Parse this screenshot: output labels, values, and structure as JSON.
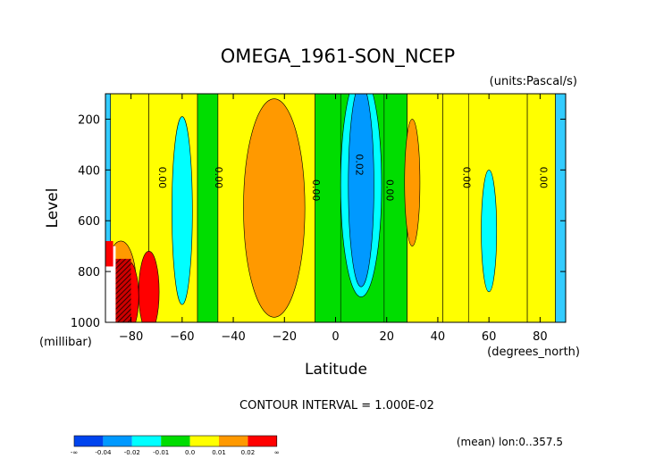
{
  "chart_data": {
    "type": "heatmap",
    "title": "OMEGA_1961-SON_NCEP",
    "units": "(units:Pascal/s)",
    "xlabel": "Latitude",
    "x_unit": "(degrees_north)",
    "ylabel": "Level",
    "y_unit": "(millibar)",
    "xlim": [
      -90,
      90
    ],
    "ylim": [
      1000,
      100
    ],
    "x_ticks": [
      -80,
      -60,
      -40,
      -20,
      0,
      20,
      40,
      60,
      80
    ],
    "x_tick_labels": [
      "−80",
      "−60",
      "−40",
      "−20",
      "0",
      "20",
      "40",
      "60",
      "80"
    ],
    "y_ticks": [
      200,
      400,
      600,
      800,
      1000
    ],
    "y_tick_labels": [
      "200",
      "400",
      "600",
      "800",
      "1000"
    ],
    "contour_interval_text": "CONTOUR INTERVAL = 1.000E-02",
    "footer_text": "(mean) lon:0..357.5",
    "contour_labels": [
      {
        "x": -69,
        "y": 430,
        "text": "0.00"
      },
      {
        "x": -47,
        "y": 430,
        "text": "0.00"
      },
      {
        "x": -9,
        "y": 480,
        "text": "0.00"
      },
      {
        "x": 8,
        "y": 380,
        "text": "0.02"
      },
      {
        "x": 20,
        "y": 480,
        "text": "0.00"
      },
      {
        "x": 50,
        "y": 430,
        "text": "0.00"
      },
      {
        "x": 80,
        "y": 430,
        "text": "0.00"
      }
    ],
    "bands": [
      {
        "x": [
          -90,
          -88
        ],
        "color": "#33ccff"
      },
      {
        "x": [
          -88,
          -73
        ],
        "color": "#ffff00"
      },
      {
        "x": [
          -73,
          -54
        ],
        "color": "#ffff00"
      },
      {
        "x": [
          -54,
          -46
        ],
        "color": "#00dd00"
      },
      {
        "x": [
          -46,
          -8
        ],
        "color": "#ffff00"
      },
      {
        "x": [
          -8,
          2
        ],
        "color": "#00dd00"
      },
      {
        "x": [
          19,
          28
        ],
        "color": "#00dd00"
      },
      {
        "x": [
          28,
          42
        ],
        "color": "#ffff00"
      },
      {
        "x": [
          42,
          52
        ],
        "color": "#ffff00"
      },
      {
        "x": [
          52,
          75
        ],
        "color": "#ffff00"
      },
      {
        "x": [
          75,
          86
        ],
        "color": "#ffff00"
      },
      {
        "x": [
          86,
          90
        ],
        "color": "#33ccff"
      }
    ],
    "blobs": [
      {
        "cx": -24,
        "cy": 550,
        "rx": 12,
        "ry": 430,
        "color": "#ff9900"
      },
      {
        "cx": -60,
        "cy": 560,
        "rx": 4,
        "ry": 370,
        "color": "#00ffff"
      },
      {
        "cx": 10,
        "cy": 460,
        "rx": 8,
        "ry": 440,
        "color": "#00ffff"
      },
      {
        "cx": 10,
        "cy": 460,
        "rx": 5,
        "ry": 400,
        "color": "#0099ff"
      },
      {
        "cx": 30,
        "cy": 450,
        "rx": 3,
        "ry": 250,
        "color": "#ff9900"
      },
      {
        "cx": 60,
        "cy": 640,
        "rx": 3,
        "ry": 240,
        "color": "#00ffff"
      },
      {
        "cx": -84,
        "cy": 850,
        "rx": 6,
        "ry": 170,
        "color": "#ff9900"
      },
      {
        "cx": -73,
        "cy": 880,
        "rx": 4,
        "ry": 160,
        "color": "#ff0000"
      },
      {
        "cx": -81,
        "cy": 900,
        "rx": 4,
        "ry": 140,
        "color": "#ff0000"
      }
    ],
    "legend": {
      "colors": [
        "#0044ee",
        "#0099ff",
        "#00ffff",
        "#00dd00",
        "#ffff00",
        "#ff9900",
        "#ff0000"
      ],
      "labels": [
        "-∞",
        "-0.04",
        "-0.02",
        "-0.01",
        "0.0",
        "0.01",
        "0.02",
        "∞"
      ]
    }
  }
}
